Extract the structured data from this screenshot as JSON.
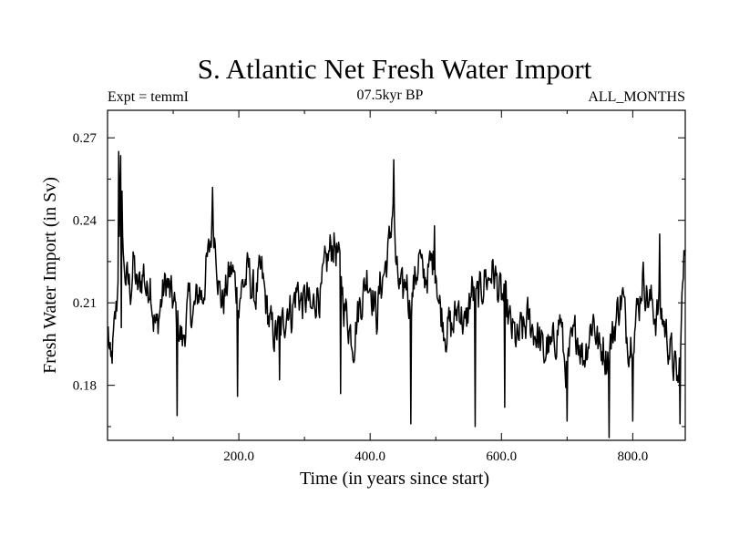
{
  "chart_data": {
    "type": "line",
    "title": "S. Atlantic Net Fresh Water Import",
    "subtitle_left": "Expt = temmI",
    "subtitle_center": "07.5kyr BP",
    "subtitle_right": "ALL_MONTHS",
    "xlabel": "Time (in years since start)",
    "ylabel": "Fresh Water Import (in Sv)",
    "xlim": [
      0,
      880
    ],
    "ylim": [
      0.16,
      0.28
    ],
    "xticks": [
      200,
      400,
      600,
      800
    ],
    "xtick_labels": [
      "200.0",
      "400.0",
      "600.0",
      "800.0"
    ],
    "yticks": [
      0.18,
      0.21,
      0.24,
      0.27
    ],
    "ytick_labels": [
      "0.18",
      "0.21",
      "0.24",
      "0.27"
    ],
    "grid": false,
    "series": [
      {
        "name": "fresh water import",
        "x_start": 1,
        "x_step": 1,
        "n": 880,
        "anchors": [
          [
            0,
            0.203
          ],
          [
            5,
            0.185
          ],
          [
            10,
            0.198
          ],
          [
            15,
            0.212
          ],
          [
            20,
            0.258
          ],
          [
            25,
            0.222
          ],
          [
            30,
            0.218
          ],
          [
            35,
            0.215
          ],
          [
            40,
            0.225
          ],
          [
            45,
            0.214
          ],
          [
            50,
            0.217
          ],
          [
            55,
            0.222
          ],
          [
            60,
            0.213
          ],
          [
            65,
            0.22
          ],
          [
            70,
            0.205
          ],
          [
            75,
            0.2
          ],
          [
            80,
            0.208
          ],
          [
            85,
            0.214
          ],
          [
            90,
            0.218
          ],
          [
            95,
            0.213
          ],
          [
            100,
            0.21
          ],
          [
            105,
            0.205
          ],
          [
            110,
            0.2
          ],
          [
            115,
            0.195
          ],
          [
            120,
            0.205
          ],
          [
            125,
            0.21
          ],
          [
            130,
            0.205
          ],
          [
            135,
            0.21
          ],
          [
            140,
            0.215
          ],
          [
            145,
            0.212
          ],
          [
            150,
            0.222
          ],
          [
            155,
            0.228
          ],
          [
            160,
            0.24
          ],
          [
            165,
            0.232
          ],
          [
            170,
            0.215
          ],
          [
            175,
            0.21
          ],
          [
            180,
            0.214
          ],
          [
            185,
            0.22
          ],
          [
            190,
            0.222
          ],
          [
            195,
            0.216
          ],
          [
            200,
            0.212
          ],
          [
            205,
            0.216
          ],
          [
            210,
            0.218
          ],
          [
            215,
            0.222
          ],
          [
            220,
            0.215
          ],
          [
            225,
            0.212
          ],
          [
            230,
            0.218
          ],
          [
            235,
            0.22
          ],
          [
            240,
            0.212
          ],
          [
            245,
            0.205
          ],
          [
            250,
            0.2
          ],
          [
            255,
            0.198
          ],
          [
            260,
            0.2
          ],
          [
            265,
            0.2
          ],
          [
            270,
            0.205
          ],
          [
            275,
            0.21
          ],
          [
            280,
            0.206
          ],
          [
            285,
            0.212
          ],
          [
            290,
            0.215
          ],
          [
            295,
            0.21
          ],
          [
            300,
            0.21
          ],
          [
            305,
            0.212
          ],
          [
            310,
            0.205
          ],
          [
            315,
            0.21
          ],
          [
            320,
            0.215
          ],
          [
            325,
            0.212
          ],
          [
            330,
            0.22
          ],
          [
            335,
            0.225
          ],
          [
            340,
            0.23
          ],
          [
            345,
            0.232
          ],
          [
            350,
            0.228
          ],
          [
            355,
            0.22
          ],
          [
            360,
            0.21
          ],
          [
            365,
            0.205
          ],
          [
            370,
            0.2
          ],
          [
            375,
            0.196
          ],
          [
            380,
            0.205
          ],
          [
            385,
            0.21
          ],
          [
            390,
            0.214
          ],
          [
            395,
            0.22
          ],
          [
            400,
            0.218
          ],
          [
            405,
            0.212
          ],
          [
            410,
            0.205
          ],
          [
            415,
            0.215
          ],
          [
            420,
            0.22
          ],
          [
            425,
            0.225
          ],
          [
            430,
            0.232
          ],
          [
            435,
            0.248
          ],
          [
            440,
            0.22
          ],
          [
            445,
            0.215
          ],
          [
            450,
            0.212
          ],
          [
            455,
            0.22
          ],
          [
            460,
            0.21
          ],
          [
            465,
            0.215
          ],
          [
            470,
            0.22
          ],
          [
            475,
            0.228
          ],
          [
            480,
            0.218
          ],
          [
            485,
            0.22
          ],
          [
            490,
            0.222
          ],
          [
            495,
            0.225
          ],
          [
            500,
            0.225
          ],
          [
            505,
            0.21
          ],
          [
            510,
            0.205
          ],
          [
            515,
            0.2
          ],
          [
            520,
            0.202
          ],
          [
            525,
            0.2
          ],
          [
            530,
            0.205
          ],
          [
            535,
            0.21
          ],
          [
            540,
            0.205
          ],
          [
            545,
            0.2
          ],
          [
            550,
            0.208
          ],
          [
            555,
            0.215
          ],
          [
            560,
            0.21
          ],
          [
            565,
            0.212
          ],
          [
            570,
            0.215
          ],
          [
            575,
            0.22
          ],
          [
            580,
            0.218
          ],
          [
            585,
            0.222
          ],
          [
            590,
            0.22
          ],
          [
            595,
            0.215
          ],
          [
            600,
            0.212
          ],
          [
            605,
            0.21
          ],
          [
            610,
            0.205
          ],
          [
            615,
            0.2
          ],
          [
            620,
            0.198
          ],
          [
            625,
            0.195
          ],
          [
            630,
            0.2
          ],
          [
            635,
            0.2
          ],
          [
            640,
            0.204
          ],
          [
            645,
            0.202
          ],
          [
            650,
            0.2
          ],
          [
            655,
            0.198
          ],
          [
            660,
            0.195
          ],
          [
            665,
            0.19
          ],
          [
            670,
            0.195
          ],
          [
            675,
            0.192
          ],
          [
            680,
            0.195
          ],
          [
            685,
            0.2
          ],
          [
            690,
            0.205
          ],
          [
            695,
            0.19
          ],
          [
            700,
            0.185
          ],
          [
            705,
            0.192
          ],
          [
            710,
            0.196
          ],
          [
            715,
            0.2
          ],
          [
            720,
            0.195
          ],
          [
            725,
            0.19
          ],
          [
            730,
            0.195
          ],
          [
            735,
            0.2
          ],
          [
            740,
            0.205
          ],
          [
            745,
            0.198
          ],
          [
            750,
            0.192
          ],
          [
            755,
            0.195
          ],
          [
            760,
            0.19
          ],
          [
            765,
            0.195
          ],
          [
            770,
            0.198
          ],
          [
            775,
            0.205
          ],
          [
            780,
            0.21
          ],
          [
            785,
            0.212
          ],
          [
            790,
            0.2
          ],
          [
            795,
            0.195
          ],
          [
            800,
            0.2
          ],
          [
            805,
            0.205
          ],
          [
            810,
            0.21
          ],
          [
            815,
            0.22
          ],
          [
            820,
            0.215
          ],
          [
            825,
            0.21
          ],
          [
            830,
            0.21
          ],
          [
            835,
            0.205
          ],
          [
            840,
            0.208
          ],
          [
            845,
            0.205
          ],
          [
            850,
            0.2
          ],
          [
            855,
            0.195
          ],
          [
            860,
            0.19
          ],
          [
            865,
            0.185
          ],
          [
            870,
            0.18
          ],
          [
            875,
            0.21
          ],
          [
            880,
            0.232
          ]
        ],
        "extremes": [
          [
            17,
            0.265
          ],
          [
            21,
            0.201
          ],
          [
            106,
            0.169
          ],
          [
            160,
            0.252
          ],
          [
            198,
            0.176
          ],
          [
            262,
            0.182
          ],
          [
            355,
            0.177
          ],
          [
            436,
            0.262
          ],
          [
            462,
            0.166
          ],
          [
            498,
            0.238
          ],
          [
            560,
            0.165
          ],
          [
            605,
            0.172
          ],
          [
            700,
            0.167
          ],
          [
            764,
            0.161
          ],
          [
            800,
            0.167
          ],
          [
            841,
            0.235
          ],
          [
            872,
            0.166
          ]
        ],
        "noise_amplitude": 0.012
      }
    ]
  }
}
